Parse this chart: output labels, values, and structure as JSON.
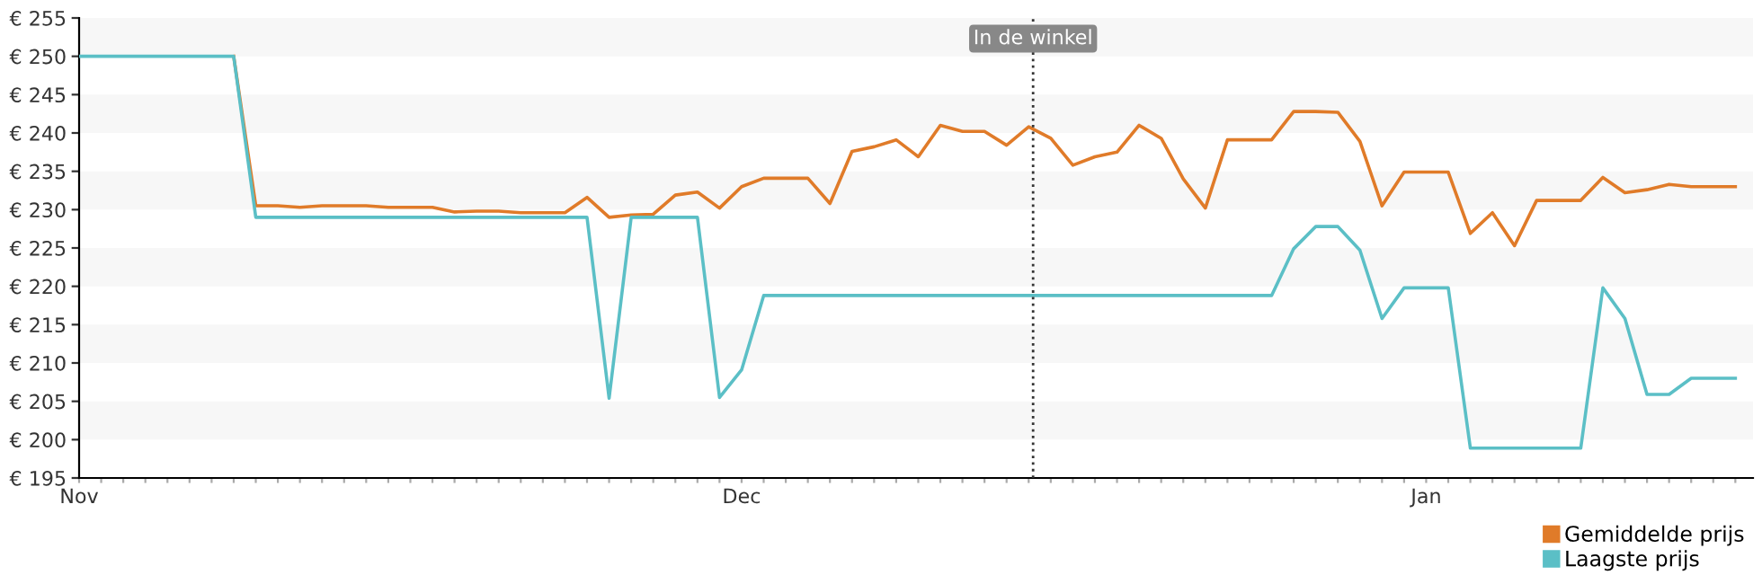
{
  "chart_data": {
    "type": "line",
    "categories": [
      "Nov",
      null,
      null,
      null,
      null,
      null,
      null,
      null,
      null,
      null,
      null,
      null,
      null,
      null,
      null,
      null,
      null,
      null,
      null,
      null,
      null,
      null,
      null,
      null,
      null,
      null,
      null,
      null,
      null,
      null,
      "Dec",
      null,
      null,
      null,
      null,
      null,
      null,
      null,
      null,
      null,
      null,
      null,
      null,
      null,
      null,
      null,
      null,
      null,
      null,
      null,
      null,
      null,
      null,
      null,
      null,
      null,
      null,
      null,
      null,
      null,
      null,
      "Jan",
      null,
      null,
      null,
      null,
      null,
      null,
      null,
      null,
      null,
      null,
      null,
      null,
      null,
      null
    ],
    "ylim": [
      195,
      255
    ],
    "yticks": [
      {
        "value": 195,
        "label": "€ 195"
      },
      {
        "value": 200,
        "label": "€ 200"
      },
      {
        "value": 205,
        "label": "€ 205"
      },
      {
        "value": 210,
        "label": "€ 210"
      },
      {
        "value": 215,
        "label": "€ 215"
      },
      {
        "value": 220,
        "label": "€ 220"
      },
      {
        "value": 225,
        "label": "€ 225"
      },
      {
        "value": 230,
        "label": "€ 230"
      },
      {
        "value": 235,
        "label": "€ 235"
      },
      {
        "value": 240,
        "label": "€ 240"
      },
      {
        "value": 245,
        "label": "€ 245"
      },
      {
        "value": 250,
        "label": "€ 250"
      },
      {
        "value": 255,
        "label": "€ 255"
      }
    ],
    "legend": "bottom right",
    "marker": "none",
    "line_style": "solid",
    "annotations": [
      "In de winkel"
    ],
    "series": [
      {
        "name": "Gemiddelde prijs",
        "color": "#e07b29",
        "values": [
          null,
          null,
          null,
          null,
          null,
          null,
          null,
          250,
          230.5,
          230.5,
          230.3,
          230.5,
          230.5,
          230.5,
          230.3,
          230.3,
          230.3,
          229.7,
          229.8,
          229.8,
          229.6,
          229.6,
          229.6,
          231.6,
          229.0,
          229.3,
          229.4,
          231.9,
          232.3,
          230.2,
          233.0,
          234.1,
          234.1,
          234.1,
          230.8,
          237.6,
          238.2,
          239.1,
          236.9,
          241.0,
          240.2,
          240.2,
          238.4,
          240.8,
          239.3,
          235.8,
          236.9,
          237.5,
          241.0,
          239.3,
          234.0,
          230.2,
          239.1,
          239.1,
          239.1,
          242.8,
          242.8,
          242.7,
          238.9,
          230.5,
          234.9,
          234.9,
          234.9,
          226.9,
          229.6,
          225.3,
          231.2,
          231.2,
          231.2,
          234.2,
          232.2,
          232.6,
          233.3,
          233.0,
          233.0,
          233.0
        ]
      },
      {
        "name": "Laagste prijs",
        "color": "#5bbfc6",
        "values": [
          250,
          250,
          250,
          250,
          250,
          250,
          250,
          250,
          229,
          229,
          229,
          229,
          229,
          229,
          229,
          229,
          229,
          229,
          229,
          229,
          229,
          229,
          229,
          229,
          205.4,
          229,
          229,
          229,
          229,
          205.5,
          209.1,
          218.8,
          218.8,
          218.8,
          218.8,
          218.8,
          218.8,
          218.8,
          218.8,
          218.8,
          218.8,
          218.8,
          218.8,
          218.8,
          218.8,
          218.8,
          218.8,
          218.8,
          218.8,
          218.8,
          218.8,
          218.8,
          218.8,
          218.8,
          218.8,
          224.9,
          227.8,
          227.8,
          224.7,
          215.8,
          219.8,
          219.8,
          219.8,
          198.9,
          198.9,
          198.9,
          198.9,
          198.9,
          198.9,
          219.8,
          215.8,
          205.9,
          205.9,
          208.0,
          208.0,
          208.0
        ]
      }
    ]
  }
}
